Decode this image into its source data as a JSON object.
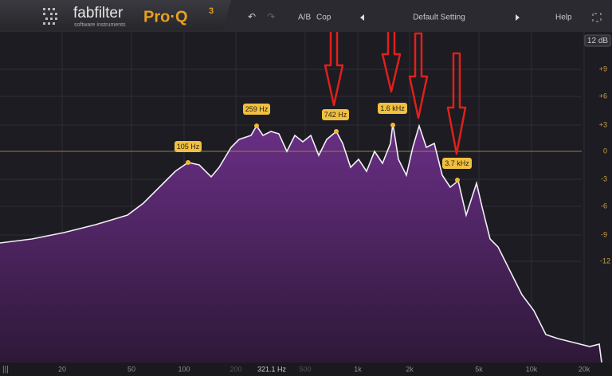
{
  "header": {
    "brand": "fabfilter",
    "tagline": "software instruments",
    "product": "Pro·Q",
    "version": "3",
    "ab": "A/B",
    "copy": "Cop",
    "preset": "Default Setting",
    "help": "Help"
  },
  "range_button": "12 dB",
  "db_labels": [
    "+9",
    "+6",
    "+3",
    "0",
    "-3",
    "-6",
    "-9",
    "-12"
  ],
  "freq_labels": [
    "20",
    "50",
    "100",
    "200",
    "321.1 Hz",
    "500",
    "1k",
    "2k",
    "5k",
    "10k",
    "20k"
  ],
  "peak_labels": [
    "105 Hz",
    "259 Hz",
    "742 Hz",
    "1.6 kHz",
    "3.7 kHz"
  ]
}
